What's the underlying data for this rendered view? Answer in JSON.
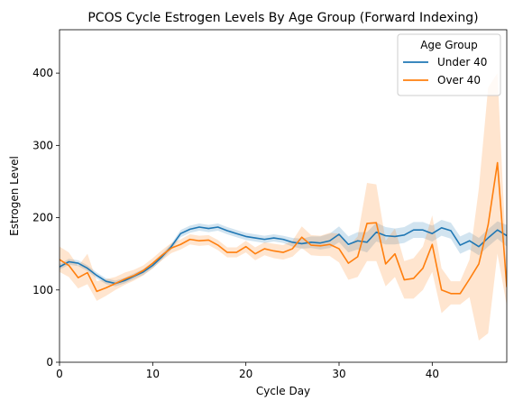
{
  "chart_data": {
    "type": "line",
    "title": "PCOS Cycle Estrogen Levels By Age Group (Forward Indexing)",
    "xlabel": "Cycle Day",
    "ylabel": "Estrogen Level",
    "xlim": [
      0,
      48
    ],
    "ylim": [
      0,
      460
    ],
    "xticks": [
      0,
      10,
      20,
      30,
      40
    ],
    "yticks": [
      0,
      100,
      200,
      300,
      400
    ],
    "grid": false,
    "legend": {
      "title": "Age Group",
      "placement": "top-right"
    },
    "x": [
      0,
      1,
      2,
      3,
      4,
      5,
      6,
      7,
      8,
      9,
      10,
      11,
      12,
      13,
      14,
      15,
      16,
      17,
      18,
      19,
      20,
      21,
      22,
      23,
      24,
      25,
      26,
      27,
      28,
      29,
      30,
      31,
      32,
      33,
      34,
      35,
      36,
      37,
      38,
      39,
      40,
      41,
      42,
      43,
      44,
      45,
      46,
      47,
      48
    ],
    "series": [
      {
        "name": "Under 40",
        "color": "#1f77b4",
        "values": [
          132,
          139,
          137,
          130,
          120,
          112,
          109,
          113,
          119,
          125,
          134,
          146,
          160,
          178,
          184,
          187,
          185,
          187,
          182,
          178,
          174,
          172,
          170,
          172,
          170,
          166,
          164,
          166,
          165,
          168,
          177,
          163,
          168,
          166,
          180,
          175,
          174,
          176,
          183,
          183,
          178,
          186,
          182,
          162,
          168,
          160,
          172,
          183,
          175
        ],
        "lower": [
          128,
          135,
          133,
          126,
          116,
          108,
          105,
          109,
          115,
          121,
          130,
          142,
          156,
          173,
          179,
          182,
          180,
          182,
          177,
          173,
          169,
          167,
          165,
          167,
          165,
          160,
          157,
          158,
          156,
          158,
          166,
          152,
          156,
          152,
          167,
          163,
          163,
          165,
          172,
          172,
          167,
          175,
          171,
          150,
          156,
          148,
          160,
          171,
          160
        ],
        "upper": [
          136,
          143,
          141,
          134,
          124,
          116,
          113,
          117,
          123,
          129,
          138,
          150,
          164,
          183,
          189,
          192,
          190,
          192,
          187,
          183,
          179,
          177,
          175,
          177,
          175,
          172,
          171,
          174,
          174,
          178,
          188,
          174,
          180,
          180,
          193,
          187,
          185,
          187,
          194,
          194,
          189,
          197,
          193,
          174,
          180,
          172,
          184,
          195,
          190
        ]
      },
      {
        "name": "Over 40",
        "color": "#ff7f0e",
        "values": [
          142,
          134,
          117,
          124,
          98,
          103,
          109,
          115,
          120,
          127,
          137,
          148,
          158,
          163,
          170,
          168,
          169,
          162,
          152,
          152,
          160,
          150,
          157,
          154,
          152,
          157,
          173,
          162,
          161,
          163,
          157,
          137,
          146,
          192,
          193,
          136,
          150,
          114,
          116,
          130,
          163,
          100,
          95,
          95,
          115,
          136,
          190,
          276,
          104
        ],
        "lower": [
          125,
          118,
          102,
          108,
          85,
          92,
          100,
          107,
          113,
          120,
          130,
          141,
          151,
          156,
          163,
          161,
          162,
          155,
          145,
          145,
          152,
          141,
          148,
          144,
          142,
          146,
          158,
          148,
          147,
          147,
          138,
          114,
          118,
          140,
          140,
          105,
          118,
          88,
          88,
          100,
          125,
          68,
          80,
          80,
          90,
          30,
          40,
          150,
          78
        ],
        "upper": [
          160,
          152,
          133,
          150,
          112,
          115,
          118,
          124,
          128,
          134,
          144,
          155,
          165,
          170,
          177,
          175,
          176,
          169,
          159,
          159,
          168,
          159,
          166,
          164,
          162,
          168,
          188,
          176,
          175,
          179,
          178,
          160,
          174,
          248,
          246,
          168,
          185,
          140,
          144,
          160,
          203,
          130,
          112,
          112,
          142,
          240,
          380,
          400,
          130
        ]
      }
    ]
  }
}
